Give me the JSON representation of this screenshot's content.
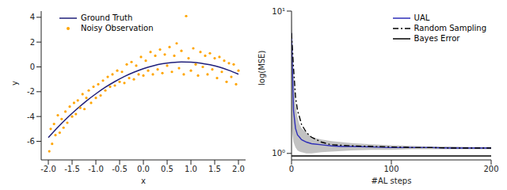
{
  "chart_data": [
    {
      "type": "scatter",
      "xlabel": "x",
      "ylabel": "y",
      "xlim": [
        -2.15,
        2.15
      ],
      "xticks": [
        {
          "value": -2,
          "label": "-2.0"
        },
        {
          "value": -1.5,
          "label": "-1.5"
        },
        {
          "value": -1,
          "label": "-1.0"
        },
        {
          "value": -0.5,
          "label": "-0.5"
        },
        {
          "value": 0,
          "label": "0.0"
        },
        {
          "value": 0.5,
          "label": "0.5"
        },
        {
          "value": 1,
          "label": "1.0"
        },
        {
          "value": 1.5,
          "label": "1.5"
        },
        {
          "value": 2,
          "label": "2.0"
        }
      ],
      "ylim": [
        -7.5,
        4.5
      ],
      "yticks": [
        -6,
        -4,
        -2,
        0,
        2,
        4
      ],
      "legend": "upper left",
      "series": [
        {
          "name": "Ground Truth",
          "type": "line",
          "color": "#1f1f7a",
          "line_style": "solid",
          "x": [
            -2,
            -1.8,
            -1.6,
            -1.4,
            -1.2,
            -1,
            -0.8,
            -0.6,
            -0.4,
            -0.2,
            0,
            0.2,
            0.4,
            0.6,
            0.8,
            1,
            1.2,
            1.4,
            1.6,
            1.8,
            2
          ],
          "values": [
            -5.7,
            -4.87,
            -4.1,
            -3.4,
            -2.75,
            -2.17,
            -1.64,
            -1.18,
            -0.77,
            -0.43,
            -0.14,
            0.08,
            0.25,
            0.35,
            0.4,
            0.38,
            0.31,
            0.17,
            -0.02,
            -0.28,
            -0.59
          ]
        },
        {
          "name": "Noisy Observation",
          "type": "scatter",
          "color": "#ffa500",
          "marker": "circle",
          "x": [
            -1.98,
            -1.95,
            -1.92,
            -1.88,
            -1.85,
            -1.8,
            -1.76,
            -1.72,
            -1.68,
            -1.64,
            -1.6,
            -1.55,
            -1.5,
            -1.46,
            -1.42,
            -1.38,
            -1.33,
            -1.28,
            -1.24,
            -1.2,
            -1.15,
            -1.1,
            -1.05,
            -1.0,
            -0.95,
            -0.9,
            -0.85,
            -0.8,
            -0.75,
            -0.7,
            -0.65,
            -0.6,
            -0.55,
            -0.5,
            -0.45,
            -0.4,
            -0.35,
            -0.3,
            -0.25,
            -0.2,
            -0.15,
            -0.1,
            -0.05,
            0.0,
            0.05,
            0.1,
            0.15,
            0.2,
            0.25,
            0.3,
            0.35,
            0.4,
            0.45,
            0.5,
            0.55,
            0.6,
            0.65,
            0.7,
            0.75,
            0.8,
            0.85,
            0.9,
            0.95,
            1.0,
            1.05,
            1.1,
            1.15,
            1.2,
            1.25,
            1.3,
            1.35,
            1.4,
            1.45,
            1.5,
            1.55,
            1.6,
            1.65,
            1.7,
            1.75,
            1.8,
            1.85,
            1.9,
            1.95,
            2.0
          ],
          "values": [
            -6.8,
            -5.0,
            -6.2,
            -4.6,
            -5.5,
            -3.9,
            -5.3,
            -4.2,
            -4.9,
            -3.6,
            -4.5,
            -3.2,
            -4.0,
            -2.9,
            -3.8,
            -2.7,
            -3.3,
            -2.2,
            -3.4,
            -2.5,
            -1.9,
            -2.9,
            -1.6,
            -2.5,
            -1.4,
            -2.3,
            -1.1,
            -1.9,
            -0.8,
            -1.6,
            -0.6,
            -1.5,
            -0.3,
            -1.2,
            -0.4,
            -1.3,
            0.2,
            -0.9,
            0.4,
            -1.0,
            0.1,
            -0.6,
            0.8,
            -0.7,
            0.5,
            -0.3,
            1.2,
            -0.6,
            0.9,
            -0.2,
            1.4,
            -0.5,
            1.0,
            0.1,
            1.6,
            -0.4,
            0.9,
            1.9,
            -0.1,
            1.3,
            -0.6,
            4.1,
            0.7,
            -0.3,
            1.5,
            0.2,
            -0.7,
            1.2,
            0.0,
            0.9,
            -0.6,
            1.1,
            -0.2,
            0.7,
            -0.9,
            0.8,
            -0.4,
            0.5,
            -1.2,
            0.3,
            -0.8,
            0.2,
            -1.4,
            -0.3
          ]
        }
      ]
    },
    {
      "type": "line",
      "xlabel": "#AL steps",
      "ylabel": "log(MSE)",
      "log": "y",
      "xlim": [
        0,
        200
      ],
      "xticks": [
        0,
        100,
        200
      ],
      "ylim": [
        0.9,
        10
      ],
      "yticks": [
        {
          "value": 1,
          "label": "10⁰"
        },
        {
          "value": 10,
          "label": "10¹"
        }
      ],
      "legend": "upper right",
      "x": [
        0,
        2,
        4,
        6,
        8,
        10,
        15,
        20,
        30,
        40,
        50,
        60,
        80,
        100,
        120,
        140,
        160,
        180,
        200
      ],
      "series": [
        {
          "name": "UAL",
          "color": "#2e2eb8",
          "line_style": "solid",
          "values": [
            7,
            2.0,
            1.5,
            1.35,
            1.3,
            1.25,
            1.2,
            1.17,
            1.15,
            1.13,
            1.12,
            1.12,
            1.11,
            1.1,
            1.1,
            1.1,
            1.09,
            1.09,
            1.09
          ],
          "lower": [
            1.5,
            1.2,
            1.1,
            1.05,
            1.03,
            1.02,
            1.0,
            1.0,
            1.02,
            1.03,
            1.04,
            1.05,
            1.06,
            1.06,
            1.07,
            1.07,
            1.07,
            1.07,
            1.07
          ],
          "upper": [
            10,
            3.5,
            2.2,
            1.8,
            1.6,
            1.5,
            1.4,
            1.3,
            1.25,
            1.22,
            1.2,
            1.18,
            1.16,
            1.14,
            1.13,
            1.12,
            1.12,
            1.11,
            1.11
          ]
        },
        {
          "name": "Random Sampling",
          "color": "#000000",
          "line_style": "dashdot",
          "values": [
            7,
            4,
            2.5,
            2.0,
            1.8,
            1.6,
            1.4,
            1.3,
            1.2,
            1.15,
            1.14,
            1.13,
            1.12,
            1.11,
            1.1,
            1.1,
            1.09,
            1.09,
            1.09
          ]
        },
        {
          "name": "Bayes Error",
          "color": "#000000",
          "line_style": "solid",
          "values": [
            0.96,
            0.96,
            0.96,
            0.96,
            0.96,
            0.96,
            0.96,
            0.96,
            0.96,
            0.96,
            0.96,
            0.96,
            0.96,
            0.96,
            0.96,
            0.96,
            0.96,
            0.96,
            0.96
          ]
        }
      ]
    }
  ]
}
